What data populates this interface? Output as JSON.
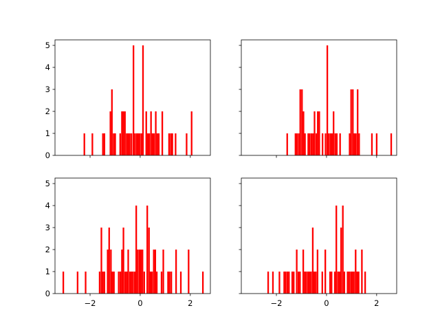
{
  "chart_data": [
    {
      "type": "bar",
      "title": "",
      "xlabel": "",
      "ylabel": "",
      "color": "#ff0000",
      "xlim": [
        -3.4,
        2.8
      ],
      "ylim": [
        0,
        5.25
      ],
      "xticks": [],
      "yticks": [
        {
          "v": 0,
          "label": "0"
        },
        {
          "v": 1,
          "label": "1"
        },
        {
          "v": 2,
          "label": "2"
        },
        {
          "v": 3,
          "label": "3"
        },
        {
          "v": 4,
          "label": "4"
        },
        {
          "v": 5,
          "label": "5"
        }
      ],
      "bin_width": 0.063,
      "bins": [
        {
          "x": -2.26,
          "y": 1
        },
        {
          "x": -1.94,
          "y": 1
        },
        {
          "x": -1.52,
          "y": 1
        },
        {
          "x": -1.46,
          "y": 1
        },
        {
          "x": -1.22,
          "y": 2
        },
        {
          "x": -1.16,
          "y": 3
        },
        {
          "x": -1.09,
          "y": 1
        },
        {
          "x": -1.03,
          "y": 1
        },
        {
          "x": -0.83,
          "y": 1
        },
        {
          "x": -0.76,
          "y": 2
        },
        {
          "x": -0.7,
          "y": 2
        },
        {
          "x": -0.64,
          "y": 2
        },
        {
          "x": -0.57,
          "y": 1
        },
        {
          "x": -0.51,
          "y": 1
        },
        {
          "x": -0.45,
          "y": 1
        },
        {
          "x": -0.38,
          "y": 1
        },
        {
          "x": -0.3,
          "y": 5
        },
        {
          "x": -0.24,
          "y": 1
        },
        {
          "x": -0.17,
          "y": 1
        },
        {
          "x": -0.11,
          "y": 1
        },
        {
          "x": -0.05,
          "y": 1
        },
        {
          "x": 0.02,
          "y": 1
        },
        {
          "x": 0.08,
          "y": 5
        },
        {
          "x": 0.21,
          "y": 2
        },
        {
          "x": 0.27,
          "y": 1
        },
        {
          "x": 0.33,
          "y": 1
        },
        {
          "x": 0.4,
          "y": 2
        },
        {
          "x": 0.46,
          "y": 1
        },
        {
          "x": 0.52,
          "y": 1
        },
        {
          "x": 0.59,
          "y": 2
        },
        {
          "x": 0.65,
          "y": 1
        },
        {
          "x": 0.71,
          "y": 1
        },
        {
          "x": 0.85,
          "y": 2
        },
        {
          "x": 1.12,
          "y": 1
        },
        {
          "x": 1.19,
          "y": 1
        },
        {
          "x": 1.25,
          "y": 1
        },
        {
          "x": 1.38,
          "y": 1
        },
        {
          "x": 1.82,
          "y": 1
        },
        {
          "x": 2.02,
          "y": 2
        }
      ]
    },
    {
      "type": "bar",
      "title": "",
      "xlabel": "",
      "ylabel": "",
      "color": "#ff0000",
      "xlim": [
        -3.4,
        2.8
      ],
      "ylim": [
        0,
        5.25
      ],
      "xticks": [],
      "yticks": [],
      "bin_width": 0.063,
      "bins": [
        {
          "x": -1.6,
          "y": 1
        },
        {
          "x": -1.27,
          "y": 1
        },
        {
          "x": -1.21,
          "y": 1
        },
        {
          "x": -1.14,
          "y": 1
        },
        {
          "x": -1.08,
          "y": 3
        },
        {
          "x": -1.01,
          "y": 3
        },
        {
          "x": -0.95,
          "y": 2
        },
        {
          "x": -0.89,
          "y": 1
        },
        {
          "x": -0.76,
          "y": 1
        },
        {
          "x": -0.7,
          "y": 1
        },
        {
          "x": -0.63,
          "y": 1
        },
        {
          "x": -0.57,
          "y": 1
        },
        {
          "x": -0.51,
          "y": 2
        },
        {
          "x": -0.44,
          "y": 1
        },
        {
          "x": -0.38,
          "y": 2
        },
        {
          "x": -0.32,
          "y": 2
        },
        {
          "x": -0.19,
          "y": 1
        },
        {
          "x": -0.07,
          "y": 1
        },
        {
          "x": 0.0,
          "y": 5
        },
        {
          "x": 0.06,
          "y": 1
        },
        {
          "x": 0.13,
          "y": 1
        },
        {
          "x": 0.19,
          "y": 1
        },
        {
          "x": 0.25,
          "y": 2
        },
        {
          "x": 0.32,
          "y": 1
        },
        {
          "x": 0.38,
          "y": 1
        },
        {
          "x": 0.51,
          "y": 1
        },
        {
          "x": 0.89,
          "y": 1
        },
        {
          "x": 0.95,
          "y": 3
        },
        {
          "x": 1.02,
          "y": 3
        },
        {
          "x": 1.08,
          "y": 1
        },
        {
          "x": 1.14,
          "y": 1
        },
        {
          "x": 1.21,
          "y": 3
        },
        {
          "x": 1.27,
          "y": 1
        },
        {
          "x": 1.78,
          "y": 1
        },
        {
          "x": 1.97,
          "y": 1
        },
        {
          "x": 2.55,
          "y": 1
        }
      ]
    },
    {
      "type": "bar",
      "title": "",
      "xlabel": "",
      "ylabel": "",
      "color": "#ff0000",
      "xlim": [
        -3.4,
        2.8
      ],
      "ylim": [
        0,
        5.25
      ],
      "xticks": [
        {
          "v": -2,
          "label": "−2"
        },
        {
          "v": 0,
          "label": "0"
        },
        {
          "v": 2,
          "label": "2"
        }
      ],
      "yticks": [
        {
          "v": 0,
          "label": "0"
        },
        {
          "v": 1,
          "label": "1"
        },
        {
          "v": 2,
          "label": "2"
        },
        {
          "v": 3,
          "label": "3"
        },
        {
          "v": 4,
          "label": "4"
        },
        {
          "v": 5,
          "label": "5"
        }
      ],
      "bin_width": 0.063,
      "bins": [
        {
          "x": -3.1,
          "y": 1
        },
        {
          "x": -2.53,
          "y": 1
        },
        {
          "x": -2.21,
          "y": 1
        },
        {
          "x": -1.65,
          "y": 1
        },
        {
          "x": -1.58,
          "y": 3
        },
        {
          "x": -1.52,
          "y": 1
        },
        {
          "x": -1.46,
          "y": 1
        },
        {
          "x": -1.33,
          "y": 2
        },
        {
          "x": -1.27,
          "y": 3
        },
        {
          "x": -1.2,
          "y": 2
        },
        {
          "x": -1.14,
          "y": 1
        },
        {
          "x": -1.08,
          "y": 1
        },
        {
          "x": -0.89,
          "y": 1
        },
        {
          "x": -0.82,
          "y": 1
        },
        {
          "x": -0.76,
          "y": 2
        },
        {
          "x": -0.7,
          "y": 3
        },
        {
          "x": -0.63,
          "y": 1
        },
        {
          "x": -0.57,
          "y": 1
        },
        {
          "x": -0.51,
          "y": 2
        },
        {
          "x": -0.44,
          "y": 1
        },
        {
          "x": -0.38,
          "y": 1
        },
        {
          "x": -0.32,
          "y": 1
        },
        {
          "x": -0.25,
          "y": 1
        },
        {
          "x": -0.19,
          "y": 4
        },
        {
          "x": -0.13,
          "y": 2
        },
        {
          "x": -0.06,
          "y": 2
        },
        {
          "x": 0.0,
          "y": 2
        },
        {
          "x": 0.06,
          "y": 2
        },
        {
          "x": 0.13,
          "y": 1
        },
        {
          "x": 0.25,
          "y": 4
        },
        {
          "x": 0.32,
          "y": 3
        },
        {
          "x": 0.38,
          "y": 1
        },
        {
          "x": 0.44,
          "y": 1
        },
        {
          "x": 0.51,
          "y": 2
        },
        {
          "x": 0.57,
          "y": 2
        },
        {
          "x": 0.63,
          "y": 1
        },
        {
          "x": 0.82,
          "y": 1
        },
        {
          "x": 0.89,
          "y": 2
        },
        {
          "x": 1.08,
          "y": 1
        },
        {
          "x": 1.14,
          "y": 1
        },
        {
          "x": 1.21,
          "y": 1
        },
        {
          "x": 1.4,
          "y": 2
        },
        {
          "x": 1.59,
          "y": 1
        },
        {
          "x": 1.9,
          "y": 2
        },
        {
          "x": 2.47,
          "y": 1
        }
      ]
    },
    {
      "type": "bar",
      "title": "",
      "xlabel": "",
      "ylabel": "",
      "color": "#ff0000",
      "xlim": [
        -3.4,
        2.8
      ],
      "ylim": [
        0,
        5.25
      ],
      "xticks": [
        {
          "v": -2,
          "label": "−2"
        },
        {
          "v": 0,
          "label": "0"
        },
        {
          "v": 2,
          "label": "2"
        }
      ],
      "yticks": [],
      "bin_width": 0.063,
      "bins": [
        {
          "x": -2.36,
          "y": 1
        },
        {
          "x": -2.17,
          "y": 1
        },
        {
          "x": -1.91,
          "y": 1
        },
        {
          "x": -1.72,
          "y": 1
        },
        {
          "x": -1.66,
          "y": 1
        },
        {
          "x": -1.59,
          "y": 1
        },
        {
          "x": -1.53,
          "y": 1
        },
        {
          "x": -1.4,
          "y": 1
        },
        {
          "x": -1.34,
          "y": 1
        },
        {
          "x": -1.22,
          "y": 2
        },
        {
          "x": -1.15,
          "y": 1
        },
        {
          "x": -1.09,
          "y": 1
        },
        {
          "x": -0.96,
          "y": 2
        },
        {
          "x": -0.9,
          "y": 1
        },
        {
          "x": -0.84,
          "y": 1
        },
        {
          "x": -0.77,
          "y": 1
        },
        {
          "x": -0.71,
          "y": 1
        },
        {
          "x": -0.65,
          "y": 1
        },
        {
          "x": -0.58,
          "y": 3
        },
        {
          "x": -0.52,
          "y": 1
        },
        {
          "x": -0.46,
          "y": 1
        },
        {
          "x": -0.39,
          "y": 2
        },
        {
          "x": -0.2,
          "y": 1
        },
        {
          "x": -0.08,
          "y": 2
        },
        {
          "x": 0.11,
          "y": 1
        },
        {
          "x": 0.17,
          "y": 1
        },
        {
          "x": 0.3,
          "y": 1
        },
        {
          "x": 0.36,
          "y": 4
        },
        {
          "x": 0.43,
          "y": 1
        },
        {
          "x": 0.49,
          "y": 1
        },
        {
          "x": 0.55,
          "y": 3
        },
        {
          "x": 0.62,
          "y": 4
        },
        {
          "x": 0.68,
          "y": 1
        },
        {
          "x": 0.81,
          "y": 1
        },
        {
          "x": 0.87,
          "y": 1
        },
        {
          "x": 0.94,
          "y": 1
        },
        {
          "x": 1.0,
          "y": 1
        },
        {
          "x": 1.06,
          "y": 1
        },
        {
          "x": 1.13,
          "y": 2
        },
        {
          "x": 1.19,
          "y": 1
        },
        {
          "x": 1.25,
          "y": 1
        },
        {
          "x": 1.38,
          "y": 2
        },
        {
          "x": 1.51,
          "y": 1
        }
      ]
    }
  ]
}
